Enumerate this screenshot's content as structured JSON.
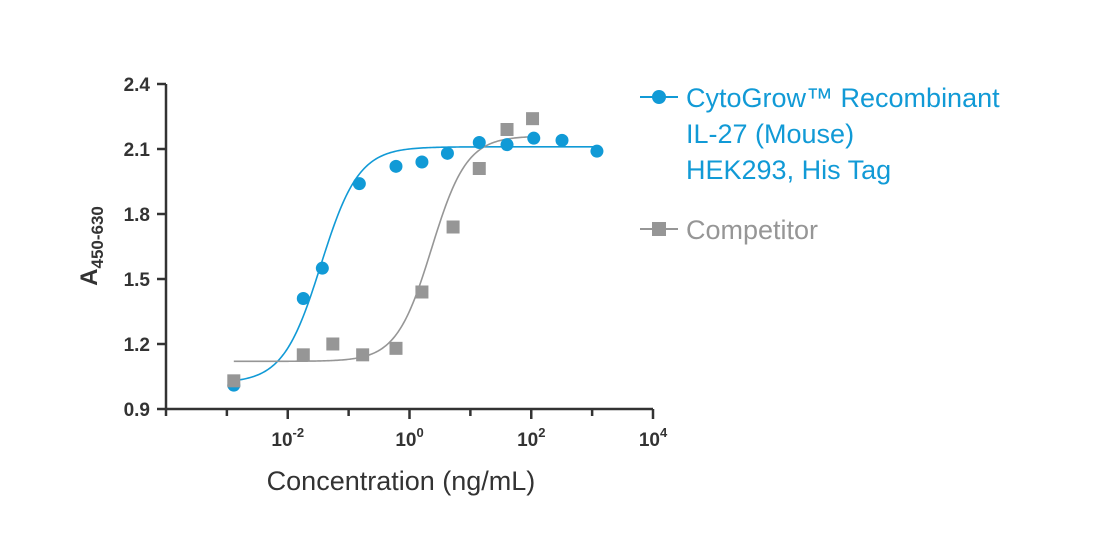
{
  "chart_data": {
    "type": "scatter",
    "xlabel": "Concentration (ng/mL)",
    "ylabel_main": "A",
    "ylabel_sub": "450-630",
    "x_scale": "log",
    "xlim": [
      0.0001,
      10000
    ],
    "ylim": [
      0.9,
      2.4
    ],
    "x_ticks": [
      {
        "value": 0.01,
        "base": "10",
        "exp": "-2"
      },
      {
        "value": 1,
        "base": "10",
        "exp": "0"
      },
      {
        "value": 100,
        "base": "10",
        "exp": "2"
      },
      {
        "value": 10000,
        "base": "10",
        "exp": "4"
      }
    ],
    "y_ticks": [
      {
        "value": 0.9,
        "label": "0.9"
      },
      {
        "value": 1.2,
        "label": "1.2"
      },
      {
        "value": 1.5,
        "label": "1.5"
      },
      {
        "value": 1.8,
        "label": "1.8"
      },
      {
        "value": 2.1,
        "label": "2.1"
      },
      {
        "value": 2.4,
        "label": "2.4"
      }
    ],
    "legend_position": "right",
    "series": [
      {
        "name_lines": [
          "CytoGrow™ Recombinant",
          "IL-27 (Mouse)",
          "HEK293, His Tag"
        ],
        "color": "#119ad6",
        "marker": "circle",
        "fit": {
          "bottom": 1.02,
          "top": 2.11,
          "ec50": 0.035,
          "hill": 1.4
        },
        "x": [
          0.0013,
          0.018,
          0.037,
          0.15,
          0.6,
          1.6,
          4.2,
          14,
          40,
          110,
          320,
          1200
        ],
        "y": [
          1.01,
          1.41,
          1.55,
          1.94,
          2.02,
          2.04,
          2.08,
          2.13,
          2.12,
          2.15,
          2.14,
          2.09
        ]
      },
      {
        "name_lines": [
          "Competitor"
        ],
        "color": "#969696",
        "marker": "square",
        "fit": {
          "bottom": 1.12,
          "top": 2.16,
          "ec50": 2.3,
          "hill": 1.5
        },
        "x": [
          0.0013,
          0.018,
          0.055,
          0.17,
          0.6,
          1.6,
          5.2,
          14,
          40,
          105
        ],
        "y": [
          1.03,
          1.15,
          1.2,
          1.15,
          1.18,
          1.44,
          1.74,
          2.01,
          2.19,
          2.24
        ]
      }
    ]
  }
}
